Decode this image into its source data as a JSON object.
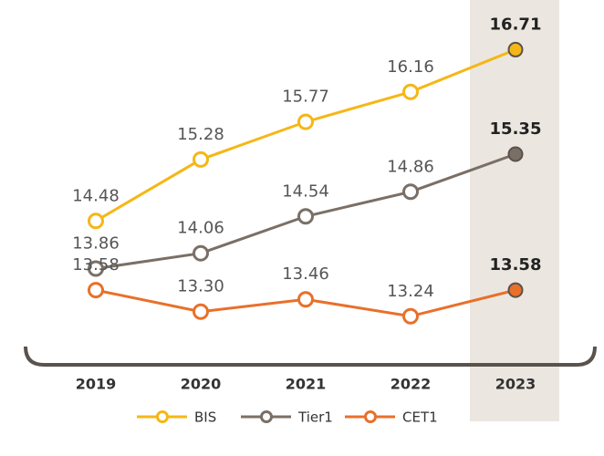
{
  "chart_data": {
    "type": "line",
    "categories": [
      "2019",
      "2020",
      "2021",
      "2022",
      "2023"
    ],
    "series": [
      {
        "name": "BIS",
        "color": "#f5b716",
        "values": [
          14.48,
          15.28,
          15.77,
          16.16,
          16.71
        ],
        "value_labels": [
          "14.48",
          "15.28",
          "15.77",
          "16.16",
          "16.71"
        ]
      },
      {
        "name": "Tier1",
        "color": "#7a6f66",
        "values": [
          13.86,
          14.06,
          14.54,
          14.86,
          15.35
        ],
        "value_labels": [
          "13.86",
          "14.06",
          "14.54",
          "14.86",
          "15.35"
        ]
      },
      {
        "name": "CET1",
        "color": "#e8702a",
        "values": [
          13.58,
          13.3,
          13.46,
          13.24,
          13.58
        ],
        "value_labels": [
          "13.58",
          "13.30",
          "13.46",
          "13.24",
          "13.58"
        ]
      }
    ],
    "ylim": [
      13,
      17
    ],
    "highlight_index": 4,
    "legend": "bottom"
  }
}
